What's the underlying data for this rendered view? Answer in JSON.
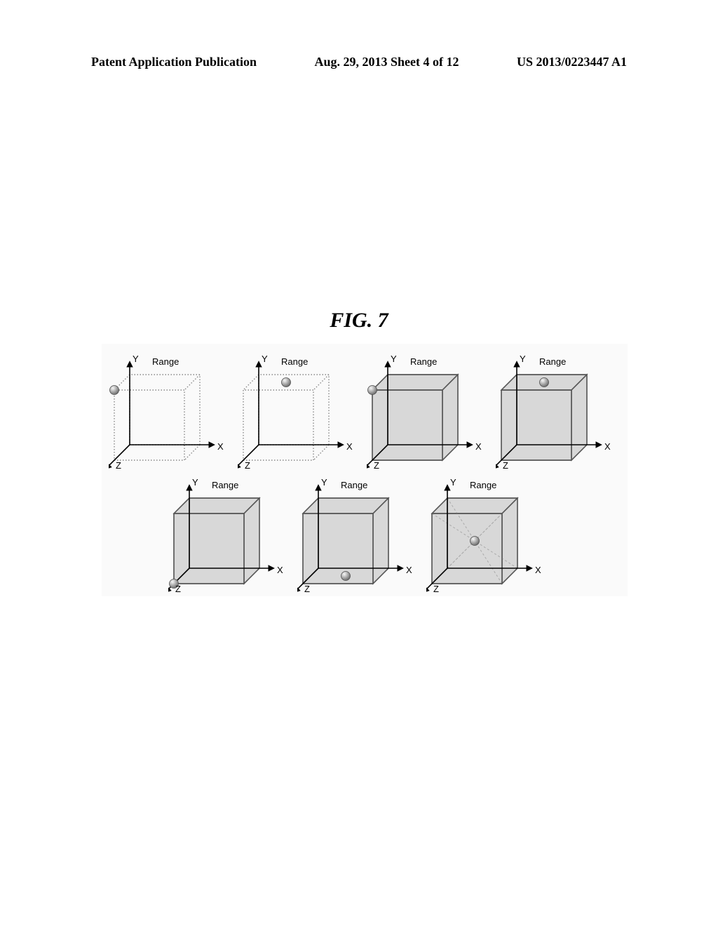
{
  "header": {
    "left": "Patent Application Publication",
    "center": "Aug. 29, 2013  Sheet 4 of 12",
    "right": "US 2013/0223447 A1"
  },
  "figure": {
    "title": "FIG. 7",
    "axis_y": "Y",
    "axis_x": "X",
    "axis_z": "Z",
    "range_label": "Range",
    "background_color": "#fafafa",
    "cube_fill": "#d8d8d8",
    "cube_stroke": "#555555",
    "cube_stroke_dotted": "#888888",
    "axis_stroke": "#000000",
    "sphere_gradient_light": "#f8f8f8",
    "sphere_gradient_dark": "#707070",
    "cubes": [
      {
        "row": 1,
        "dotted": true,
        "sphere_x": 0.0,
        "sphere_y": 1.0,
        "sphere_z": 1.0,
        "diagonals": false
      },
      {
        "row": 1,
        "dotted": true,
        "sphere_x": 0.5,
        "sphere_y": 1.0,
        "sphere_z": 0.5,
        "diagonals": false
      },
      {
        "row": 1,
        "dotted": false,
        "sphere_x": 0.0,
        "sphere_y": 1.0,
        "sphere_z": 1.0,
        "diagonals": false
      },
      {
        "row": 1,
        "dotted": false,
        "sphere_x": 0.5,
        "sphere_y": 1.0,
        "sphere_z": 0.5,
        "diagonals": false
      },
      {
        "row": 2,
        "dotted": false,
        "sphere_x": 0.0,
        "sphere_y": 0.0,
        "sphere_z": 1.0,
        "diagonals": false
      },
      {
        "row": 2,
        "dotted": false,
        "sphere_x": 0.5,
        "sphere_y": 0.0,
        "sphere_z": 0.5,
        "diagonals": false
      },
      {
        "row": 2,
        "dotted": false,
        "sphere_x": 0.5,
        "sphere_y": 0.5,
        "sphere_z": 0.5,
        "diagonals": true
      }
    ]
  }
}
